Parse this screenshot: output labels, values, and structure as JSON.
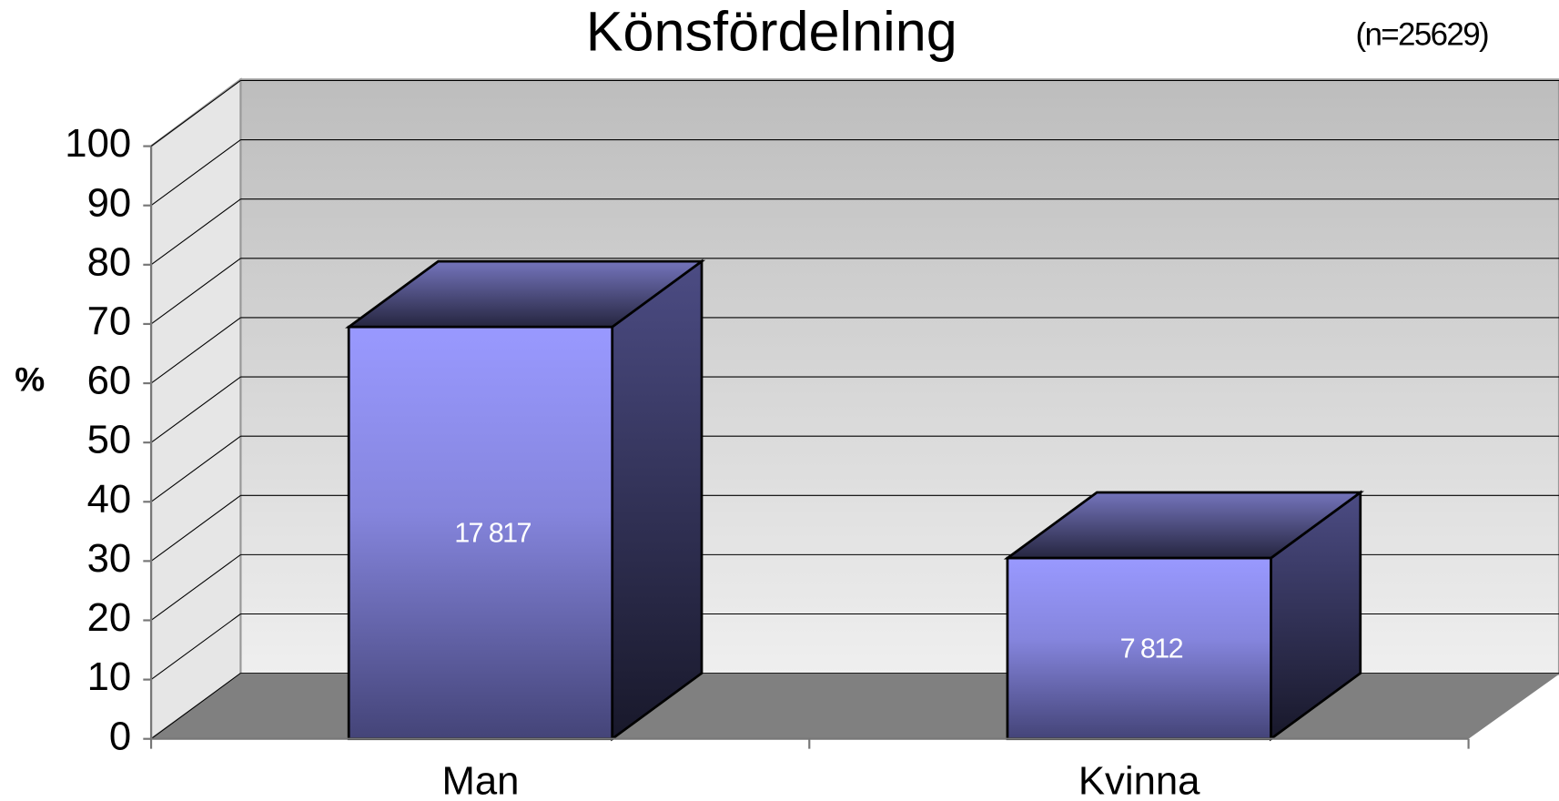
{
  "chart_data": {
    "type": "bar3d",
    "title": "Könsfördelning",
    "subtitle": "(n=25629)",
    "y_label": "%",
    "categories": [
      "Man",
      "Kvinna"
    ],
    "values": [
      69.5,
      30.5
    ],
    "count_labels": [
      "17 817",
      "7 812"
    ],
    "ylim": [
      0,
      100
    ],
    "yticks": [
      0,
      10,
      20,
      30,
      40,
      50,
      60,
      70,
      80,
      90,
      100
    ],
    "grid": true,
    "color": "#9999ff"
  }
}
